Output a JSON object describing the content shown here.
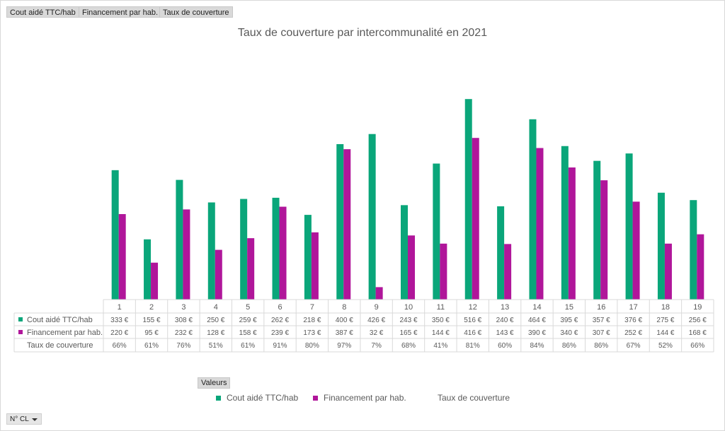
{
  "field_buttons": [
    "Cout aidé TTC/hab",
    "Financement par hab.",
    "Taux de couverture"
  ],
  "legend_button": "Valeurs",
  "filter_button": "N° CL",
  "colors": {
    "cout": "#0aa67a",
    "financement": "#b0169a"
  },
  "chart_data": {
    "type": "bar",
    "title": "Taux de couverture par intercommunalité en 2021",
    "categories": [
      "1",
      "2",
      "3",
      "4",
      "5",
      "6",
      "7",
      "8",
      "9",
      "10",
      "11",
      "12",
      "13",
      "14",
      "15",
      "16",
      "17",
      "18",
      "19"
    ],
    "series": [
      {
        "name": "Cout aidé TTC/hab",
        "values": [
          333,
          155,
          308,
          250,
          259,
          262,
          218,
          400,
          426,
          243,
          350,
          516,
          240,
          464,
          395,
          357,
          376,
          275,
          256
        ],
        "labels": [
          "333 €",
          "155 €",
          "308 €",
          "250 €",
          "259 €",
          "262 €",
          "218 €",
          "400 €",
          "426 €",
          "243 €",
          "350 €",
          "516 €",
          "240 €",
          "464 €",
          "395 €",
          "357 €",
          "376 €",
          "275 €",
          "256 €"
        ]
      },
      {
        "name": "Financement par hab.",
        "values": [
          220,
          95,
          232,
          128,
          158,
          239,
          173,
          387,
          32,
          165,
          144,
          416,
          143,
          390,
          340,
          307,
          252,
          144,
          168
        ],
        "labels": [
          "220 €",
          "95 €",
          "232 €",
          "128 €",
          "158 €",
          "239 €",
          "173 €",
          "387 €",
          "32 €",
          "165 €",
          "144 €",
          "416 €",
          "143 €",
          "390 €",
          "340 €",
          "307 €",
          "252 €",
          "144 €",
          "168 €"
        ]
      },
      {
        "name": "Taux de couverture",
        "values": [
          66,
          61,
          76,
          51,
          61,
          91,
          80,
          97,
          7,
          68,
          41,
          81,
          60,
          84,
          86,
          86,
          67,
          52,
          66
        ],
        "labels": [
          "66%",
          "61%",
          "76%",
          "51%",
          "61%",
          "91%",
          "80%",
          "97%",
          "7%",
          "68%",
          "41%",
          "81%",
          "60%",
          "84%",
          "86%",
          "86%",
          "67%",
          "52%",
          "66%"
        ]
      }
    ],
    "ylim": [
      0,
      520
    ],
    "legend": "bottom",
    "grid": false
  }
}
